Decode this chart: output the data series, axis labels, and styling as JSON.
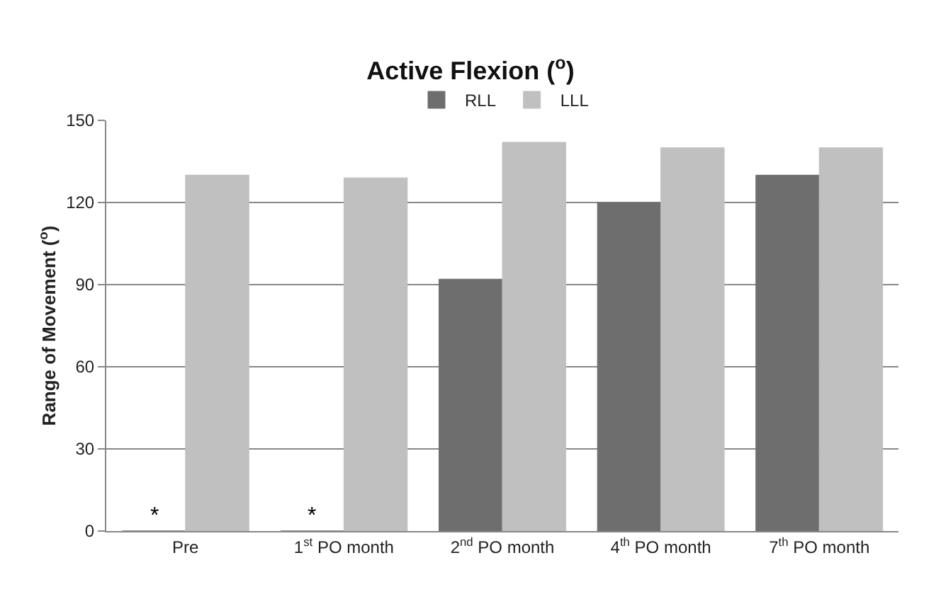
{
  "chart_data": {
    "type": "bar",
    "title": "Active Flexion ($^{o}$)",
    "ylabel": "Range of Movement ($^{o}$)",
    "categories": [
      "Pre",
      "1$^{st}$ PO month",
      "2$^{nd}$ PO month",
      "4$^{th}$ PO month",
      "7$^{th}$ PO month"
    ],
    "series": [
      {
        "name": "RLL",
        "color": "#6e6e6e",
        "values": [
          0,
          0,
          92,
          120,
          130
        ]
      },
      {
        "name": "LLL",
        "color": "#c0c0c0",
        "values": [
          130,
          129,
          142,
          140,
          140
        ]
      }
    ],
    "ylim": [
      0,
      150
    ],
    "yticks": [
      0,
      30,
      60,
      90,
      120,
      150
    ],
    "grid": "y",
    "legend": "top",
    "annotations": [
      {
        "text": "*",
        "x": "Pre",
        "y": 0
      },
      {
        "text": "*",
        "x": "1$^{st}$ PO month",
        "y": 0
      }
    ]
  }
}
